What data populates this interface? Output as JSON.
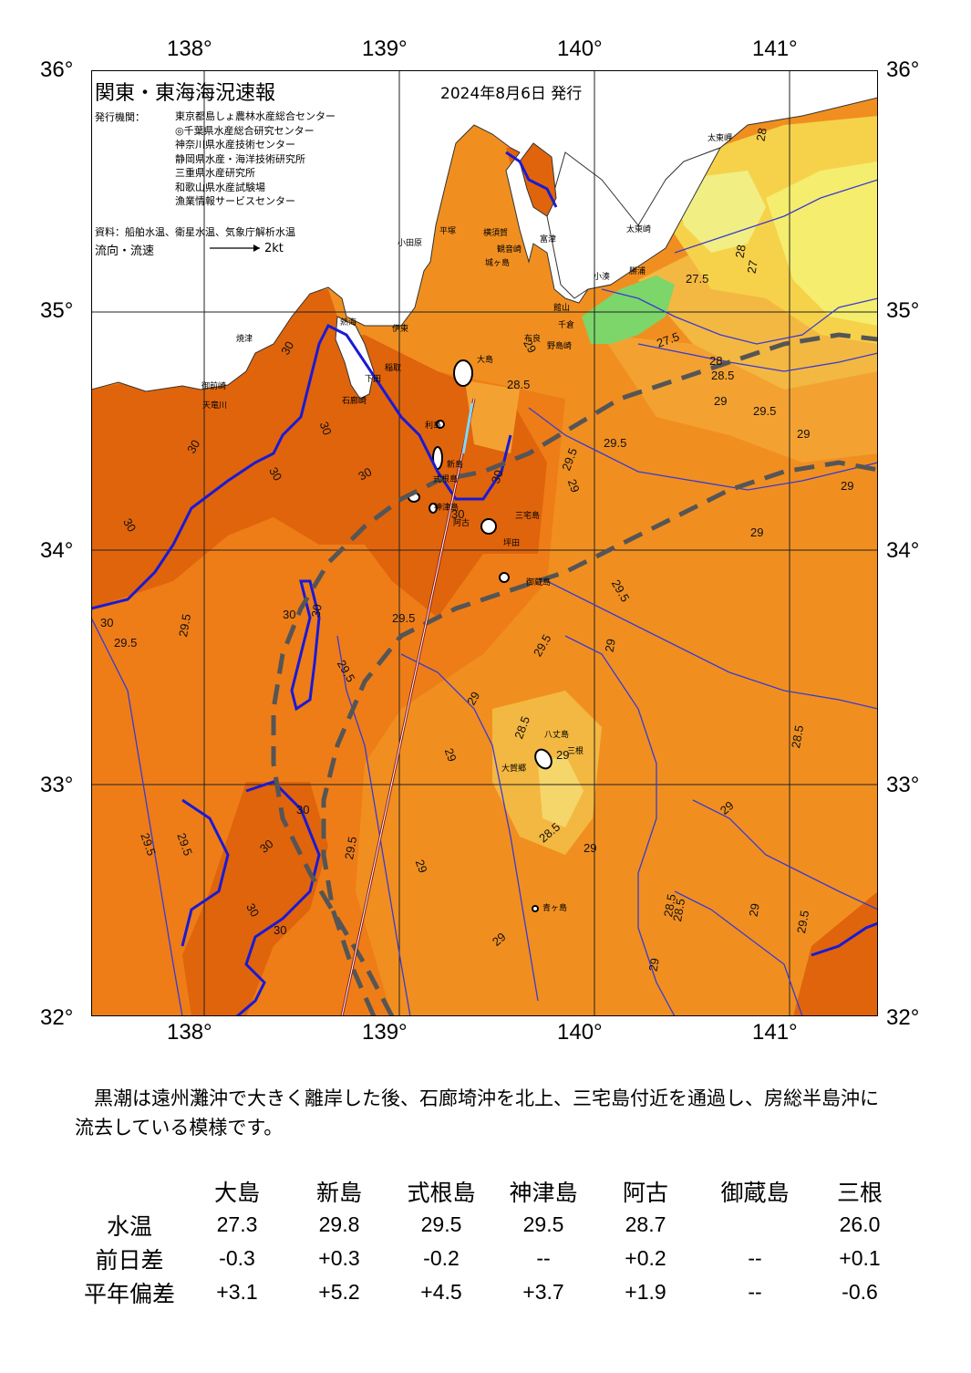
{
  "map": {
    "title": "関東・東海海況速報",
    "date": "2024年8月6日 発行",
    "issuer_label": "発行機関：",
    "issuers": [
      "東京都島しょ農林水産総合センター",
      "◎千葉県水産総合研究センター",
      "神奈川県水産技術センター",
      "静岡県水産・海洋技術研究所",
      "三重県水産研究所",
      "和歌山県水産試験場",
      "漁業情報サービスセンター"
    ],
    "source": "資料：船舶水温、衛星水温、気象庁解析水温",
    "flow_label": "流向・流速",
    "flow_scale": "2kt",
    "lon_labels": [
      "138°",
      "139°",
      "140°",
      "141°"
    ],
    "lat_labels": [
      "36°",
      "35°",
      "34°",
      "33°",
      "32°"
    ],
    "places": {
      "taitozaki": "太東崎",
      "taito": "太東岬",
      "katsuura": "勝浦",
      "kominato": "小湊",
      "futtsu": "富津",
      "tateyama": "館山",
      "chikura": "千倉",
      "nojimazaki": "野島崎",
      "odawara": "小田原",
      "hiratsuka": "平塚",
      "yokosuka": "横須賀",
      "kannonzaki": "観音崎",
      "jogashima": "城ヶ島",
      "mera": "布良",
      "ito": "伊東",
      "atami": "熱海",
      "inatori": "稲取",
      "shimoda": "下田",
      "iro": "石廊崎",
      "yaizu": "焼津",
      "omaezaki": "御前崎",
      "tenryu": "天竜川",
      "oshima": "大島",
      "toshima": "利島",
      "niijima": "新島",
      "shikinejima": "式根島",
      "kozushima": "神津島",
      "miyakejima": "三宅島",
      "ako": "阿古",
      "tsubota": "坪田",
      "mikurajima": "御蔵島",
      "hachijojima": "八丈島",
      "okago": "大賀郷",
      "mitsune": "三根",
      "aogashima": "青ヶ島"
    },
    "contour_labels": [
      "28",
      "27",
      "27.5",
      "28",
      "27.5",
      "28",
      "28.5",
      "29",
      "29.5",
      "29",
      "29",
      "28.5",
      "29.5",
      "29.5",
      "29",
      "30",
      "30",
      "30",
      "30",
      "30",
      "30",
      "30",
      "29.5",
      "29.5",
      "29.5",
      "30",
      "30",
      "29.5",
      "29.5",
      "29.5",
      "29",
      "28.5",
      "28.5",
      "29",
      "29",
      "29",
      "29",
      "29",
      "28.5",
      "29",
      "29",
      "28.5",
      "29.5",
      "29",
      "28.5",
      "29",
      "29.5",
      "30",
      "30",
      "30",
      "30",
      "30",
      "29.5",
      "29",
      "29",
      "30",
      "29.5"
    ]
  },
  "colors": {
    "c26": "#f5ed6e",
    "c26_5": "#e6f07a",
    "c27": "#7cd66a",
    "c27_5": "#f6d24a",
    "c28": "#f3b841",
    "c28_5": "#f3a232",
    "c29": "#f08f20",
    "c29_5": "#ee7d18",
    "c30": "#e0640c",
    "kuroshio_axis": "#555555",
    "contour_30": "#1a1ad4",
    "contour_other": "#3a3ad0"
  },
  "description": "　黒潮は遠州灘沖で大きく離岸した後、石廊埼沖を北上、三宅島付近を通過し、房総半島沖に流去している模様です。",
  "table": {
    "headers": [
      "",
      "大島",
      "新島",
      "式根島",
      "神津島",
      "阿古",
      "御蔵島",
      "三根"
    ],
    "rows": [
      {
        "label": "水温",
        "values": [
          "27.3",
          "29.8",
          "29.5",
          "29.5",
          "28.7",
          "",
          "26.0"
        ]
      },
      {
        "label": "前日差",
        "values": [
          "-0.3",
          "+0.3",
          "-0.2",
          "--",
          "+0.2",
          "--",
          "+0.1"
        ]
      },
      {
        "label": "平年偏差",
        "values": [
          "+3.1",
          "+5.2",
          "+4.5",
          "+3.7",
          "+1.9",
          "--",
          "-0.6"
        ]
      }
    ]
  }
}
